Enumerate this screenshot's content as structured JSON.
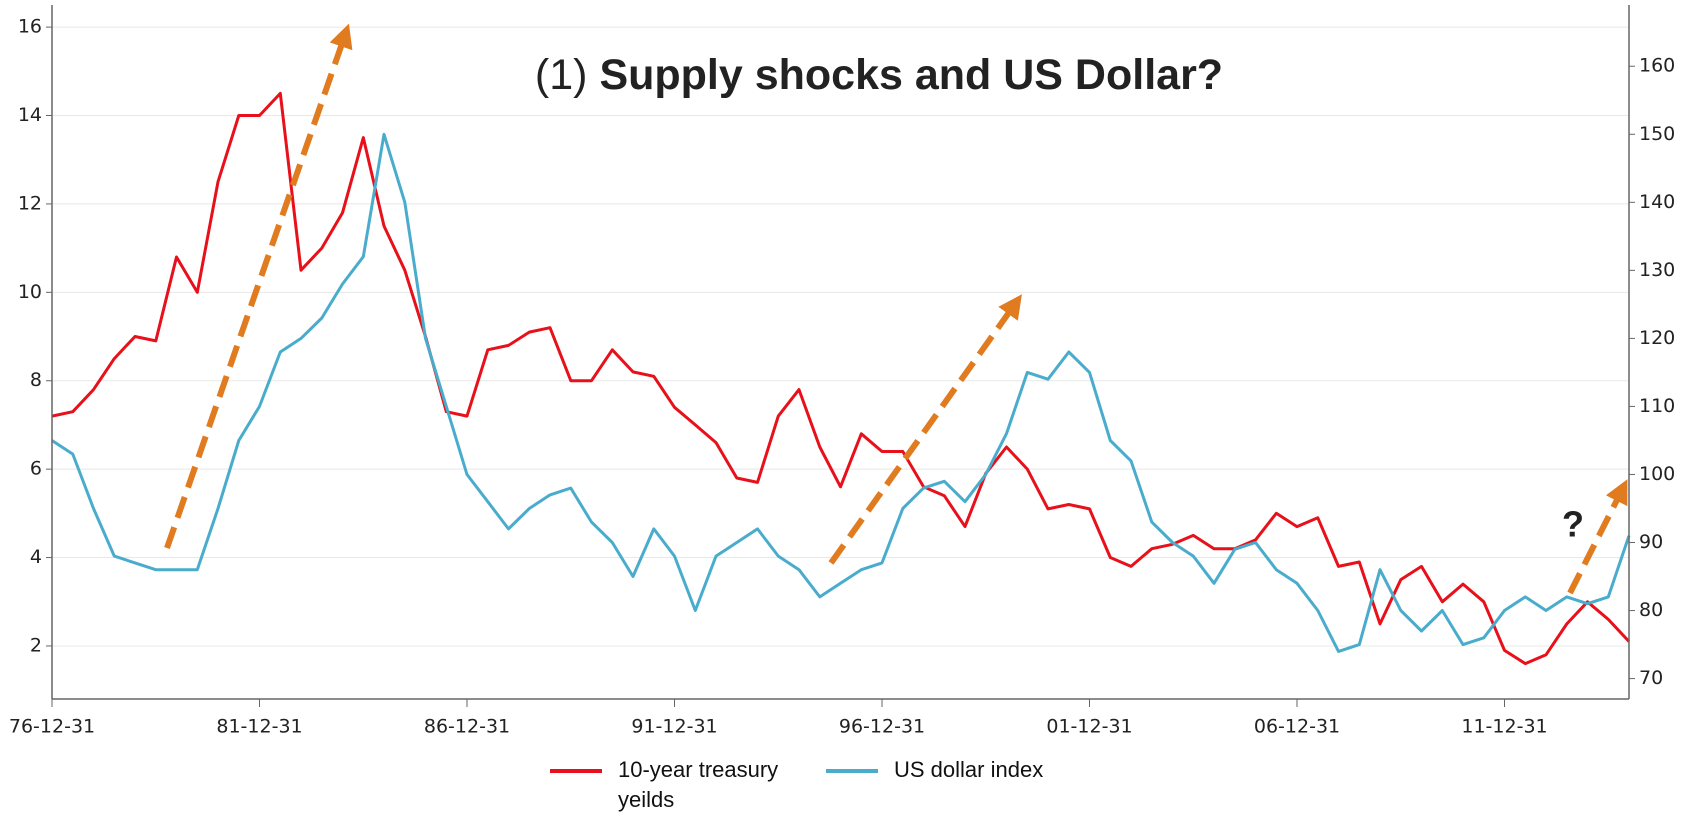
{
  "chart_data": {
    "type": "line",
    "title_number": "(1)",
    "title": "Supply shocks and US Dollar?",
    "annotation": "?",
    "x": [
      1977.0,
      1977.5,
      1978.0,
      1978.5,
      1979.0,
      1979.5,
      1980.0,
      1980.5,
      1981.0,
      1981.5,
      1982.0,
      1982.5,
      1983.0,
      1983.5,
      1984.0,
      1984.5,
      1985.0,
      1985.5,
      1986.0,
      1986.5,
      1987.0,
      1987.5,
      1988.0,
      1988.5,
      1989.0,
      1989.5,
      1990.0,
      1990.5,
      1991.0,
      1991.5,
      1992.0,
      1992.5,
      1993.0,
      1993.5,
      1994.0,
      1994.5,
      1995.0,
      1995.5,
      1996.0,
      1996.5,
      1997.0,
      1997.5,
      1998.0,
      1998.5,
      1999.0,
      1999.5,
      2000.0,
      2000.5,
      2001.0,
      2001.5,
      2002.0,
      2002.5,
      2003.0,
      2003.5,
      2004.0,
      2004.5,
      2005.0,
      2005.5,
      2006.0,
      2006.5,
      2007.0,
      2007.5,
      2008.0,
      2008.5,
      2009.0,
      2009.5,
      2010.0,
      2010.5,
      2011.0,
      2011.5,
      2012.0,
      2012.5,
      2013.0,
      2013.5,
      2014.0,
      2014.5,
      2015.0
    ],
    "series": [
      {
        "name": "10-year treasury yeilds",
        "color": "#e8101a",
        "axis": "y",
        "values": [
          7.2,
          7.3,
          7.8,
          8.5,
          9.0,
          8.9,
          10.8,
          10.0,
          12.5,
          14.0,
          14.0,
          14.5,
          10.5,
          11.0,
          11.8,
          13.5,
          11.5,
          10.5,
          9.0,
          7.3,
          7.2,
          8.7,
          8.8,
          9.1,
          9.2,
          8.0,
          8.0,
          8.7,
          8.2,
          8.1,
          7.4,
          7.0,
          6.6,
          5.8,
          5.7,
          7.2,
          7.8,
          6.5,
          5.6,
          6.8,
          6.4,
          6.4,
          5.6,
          5.4,
          4.7,
          5.9,
          6.5,
          6.0,
          5.1,
          5.2,
          5.1,
          4.0,
          3.8,
          4.2,
          4.3,
          4.5,
          4.2,
          4.2,
          4.4,
          5.0,
          4.7,
          4.9,
          3.8,
          3.9,
          2.5,
          3.5,
          3.8,
          3.0,
          3.4,
          3.0,
          1.9,
          1.6,
          1.8,
          2.5,
          3.0,
          2.6,
          2.1
        ]
      },
      {
        "name": "US dollar index",
        "color": "#4aaccc",
        "axis": "y2",
        "values": [
          105,
          103,
          95,
          88,
          87,
          86,
          86,
          86,
          95,
          105,
          110,
          118,
          120,
          123,
          128,
          132,
          150,
          140,
          120,
          110,
          100,
          96,
          92,
          95,
          97,
          98,
          93,
          90,
          85,
          92,
          88,
          80,
          88,
          90,
          92,
          88,
          86,
          82,
          84,
          86,
          87,
          95,
          98,
          99,
          96,
          100,
          106,
          115,
          114,
          118,
          115,
          105,
          102,
          93,
          90,
          88,
          84,
          89,
          90,
          86,
          84,
          80,
          74,
          75,
          86,
          80,
          77,
          80,
          75,
          76,
          80,
          82,
          80,
          82,
          81,
          82,
          91
        ]
      }
    ],
    "xlim": [
      1977.0,
      2015.0
    ],
    "xticks": [
      {
        "value": 1977.0,
        "label": "76-12-31"
      },
      {
        "value": 1982.0,
        "label": "81-12-31"
      },
      {
        "value": 1987.0,
        "label": "86-12-31"
      },
      {
        "value": 1992.0,
        "label": "91-12-31"
      },
      {
        "value": 1997.0,
        "label": "96-12-31"
      },
      {
        "value": 2002.0,
        "label": "01-12-31"
      },
      {
        "value": 2007.0,
        "label": "06-12-31"
      },
      {
        "value": 2012.0,
        "label": "11-12-31"
      }
    ],
    "ylim": [
      0.8,
      16.5
    ],
    "yticks": [
      2,
      4,
      6,
      8,
      10,
      12,
      14,
      16
    ],
    "y2lim": [
      67,
      169
    ],
    "y2ticks": [
      70,
      80,
      90,
      100,
      110,
      120,
      130,
      140,
      150,
      160
    ],
    "grid": true,
    "legend": "bottom"
  }
}
